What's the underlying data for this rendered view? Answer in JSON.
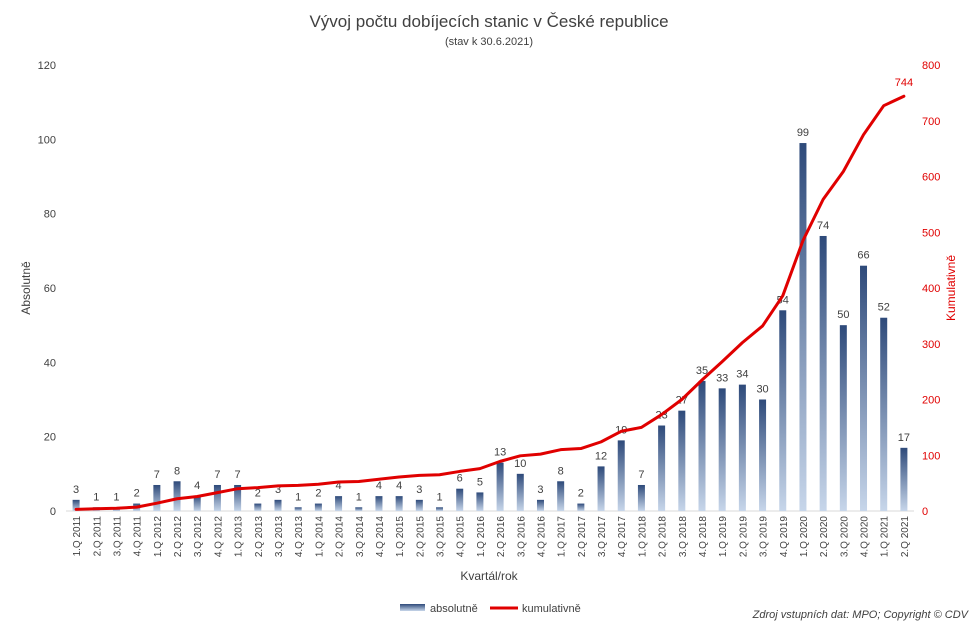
{
  "chart_data": {
    "type": "bar",
    "title": "Vývoj počtu dobíjecích stanic v České republice",
    "subtitle": "(stav k 30.6.2021)",
    "xlabel": "Kvartál/rok",
    "ylabel": "Absolutně",
    "y2label": "Kumulativně",
    "ylim": [
      0,
      120
    ],
    "y2lim": [
      0,
      800
    ],
    "yticks": [
      0,
      20,
      40,
      60,
      80,
      100,
      120
    ],
    "y2ticks": [
      0,
      100,
      200,
      300,
      400,
      500,
      600,
      700,
      800
    ],
    "grid": false,
    "legend_position": "bottom",
    "categories": [
      "1.Q 2011",
      "2.Q 2011",
      "3.Q 2011",
      "4.Q 2011",
      "1.Q 2012",
      "2.Q 2012",
      "3.Q 2012",
      "4.Q 2012",
      "1.Q 2013",
      "2.Q 2013",
      "3.Q 2013",
      "4.Q 2013",
      "1.Q 2014",
      "2.Q 2014",
      "3.Q 2014",
      "4.Q 2014",
      "1.Q 2015",
      "2.Q 2015",
      "3.Q 2015",
      "4.Q 2015",
      "1.Q 2016",
      "2.Q 2016",
      "3.Q 2016",
      "4.Q 2016",
      "1.Q 2017",
      "2.Q 2017",
      "3.Q 2017",
      "4.Q 2017",
      "1.Q 2018",
      "2.Q 2018",
      "3.Q 2018",
      "4.Q 2018",
      "1.Q 2019",
      "2.Q 2019",
      "3.Q 2019",
      "4.Q 2019",
      "1.Q 2020",
      "2.Q 2020",
      "3.Q 2020",
      "4.Q 2020",
      "1.Q 2021",
      "2.Q 2021"
    ],
    "series": [
      {
        "name": "absolutně",
        "type": "bar",
        "axis": "left",
        "color": "#2e4a7a",
        "values": [
          3,
          1,
          1,
          2,
          7,
          8,
          4,
          7,
          7,
          2,
          3,
          1,
          2,
          4,
          1,
          4,
          4,
          3,
          1,
          6,
          5,
          13,
          10,
          3,
          8,
          2,
          12,
          19,
          7,
          23,
          27,
          35,
          33,
          34,
          30,
          54,
          99,
          74,
          50,
          66,
          52,
          17
        ]
      },
      {
        "name": "kumulativně",
        "type": "line",
        "axis": "right",
        "color": "#e00000",
        "values": [
          3,
          4,
          5,
          7,
          14,
          22,
          26,
          33,
          40,
          42,
          45,
          46,
          48,
          52,
          53,
          57,
          61,
          64,
          65,
          71,
          76,
          89,
          99,
          102,
          110,
          112,
          124,
          143,
          150,
          173,
          200,
          235,
          268,
          302,
          332,
          386,
          485,
          559,
          609,
          675,
          727,
          744
        ],
        "label_last": "744"
      }
    ]
  },
  "source_note": "Zdroj vstupních dat: MPO; Copyright © CDV"
}
